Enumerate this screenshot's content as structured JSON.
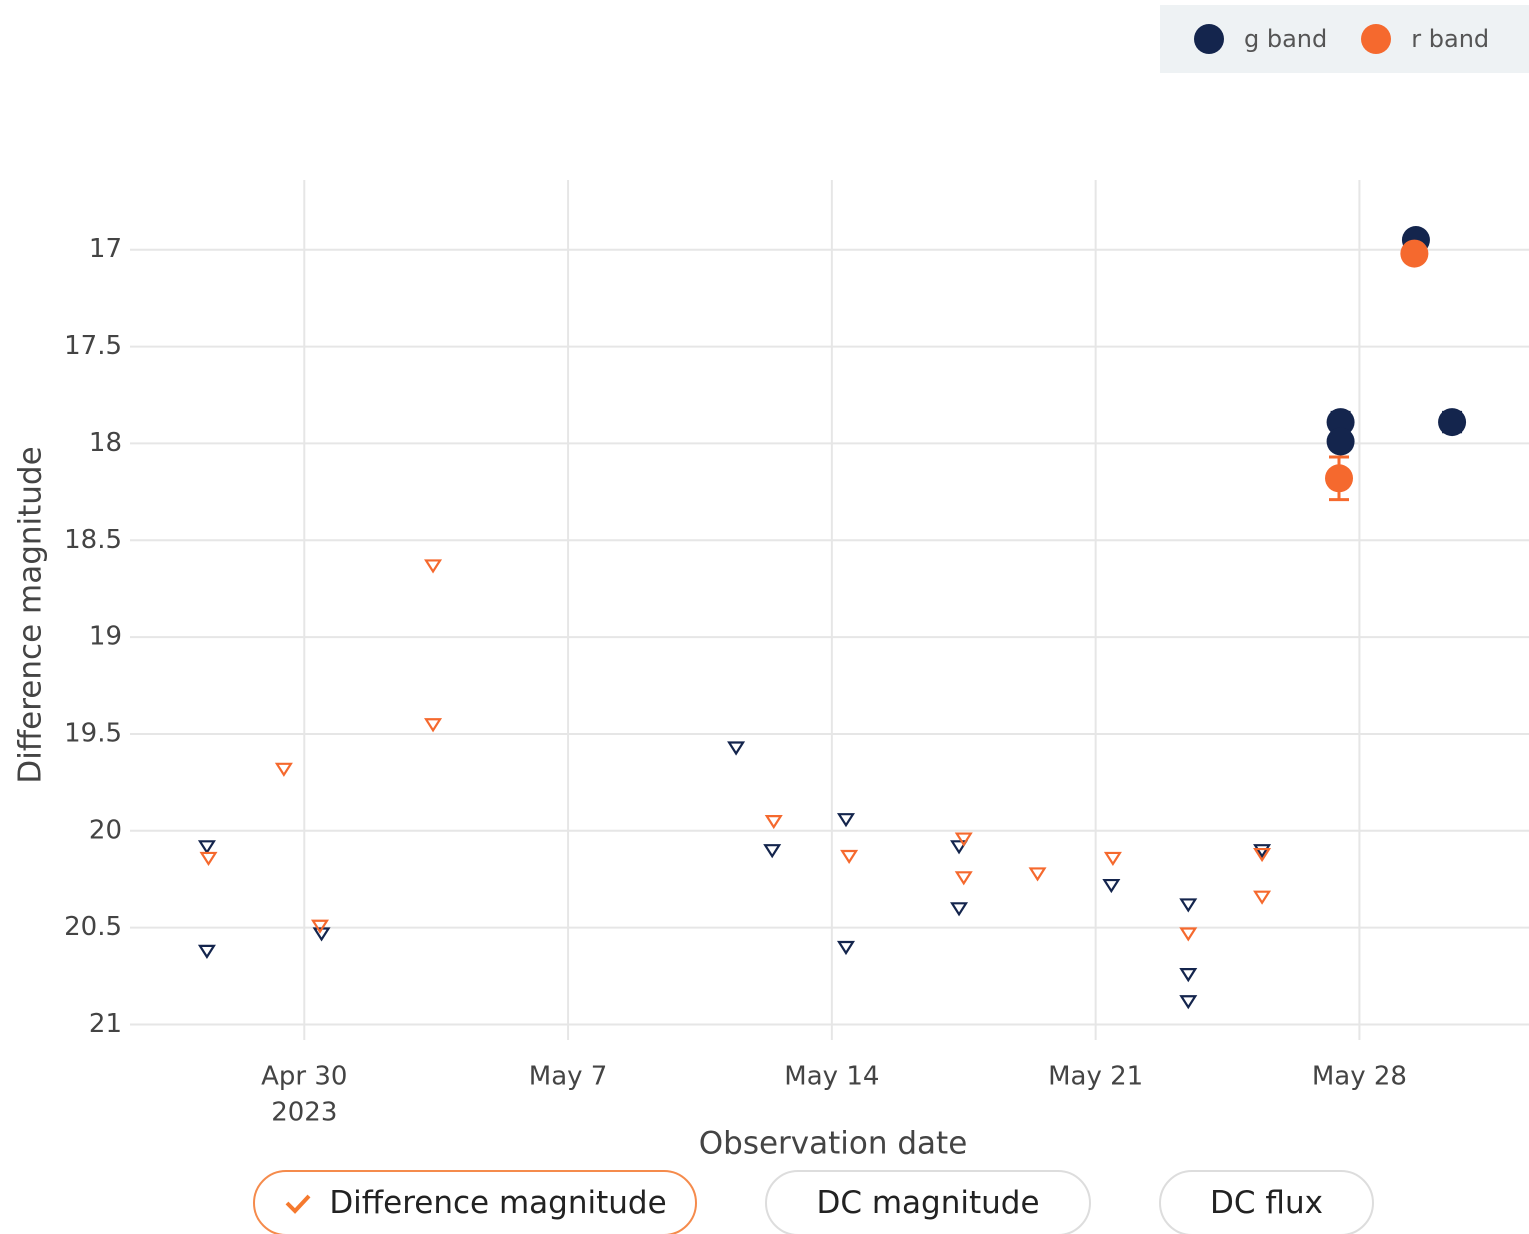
{
  "chart_data": {
    "type": "scatter",
    "xlabel": "Observation date",
    "ylabel": "Difference magnitude",
    "xlim": [
      "2023-04-25T09:00",
      "2023-06-01T12:00"
    ],
    "xticks": [
      {
        "value": "2023-04-30T00:00",
        "label": "Apr 30"
      },
      {
        "value": "2023-05-07T00:00",
        "label": "May 7"
      },
      {
        "value": "2023-05-14T00:00",
        "label": "May 14"
      },
      {
        "value": "2023-05-21T00:00",
        "label": "May 21"
      },
      {
        "value": "2023-05-28T00:00",
        "label": "May 28"
      }
    ],
    "x_year_label": "2023",
    "ylim": [
      21.08,
      16.64
    ],
    "yticks": [
      17,
      17.5,
      18,
      18.5,
      19,
      19.5,
      20,
      20.5,
      21
    ],
    "grid": true,
    "series": [
      {
        "name": "g band",
        "color": "#14254d",
        "x": [
          "2023-05-27T12:00",
          "2023-05-27T12:00",
          "2023-05-29T12:00",
          "2023-05-30T11:00"
        ],
        "values": [
          17.89,
          17.99,
          16.95,
          17.89
        ],
        "errors": [
          0.05,
          0.03,
          0.02,
          0.05
        ],
        "limits": {
          "x": [
            "2023-04-27T10:00",
            "2023-04-27T10:00",
            "2023-04-30T11:00",
            "2023-05-11T11:00",
            "2023-05-12T10:00",
            "2023-05-14T09:00",
            "2023-05-14T09:00",
            "2023-05-17T09:00",
            "2023-05-17T09:00",
            "2023-05-21T10:00",
            "2023-05-23T11:00",
            "2023-05-23T11:00",
            "2023-05-23T11:00",
            "2023-05-25T10:00"
          ],
          "values": [
            20.08,
            20.62,
            20.53,
            19.57,
            20.1,
            19.94,
            20.6,
            20.08,
            20.4,
            20.28,
            20.38,
            20.74,
            20.88,
            20.1
          ]
        }
      },
      {
        "name": "r band",
        "color": "#f5692e",
        "x": [
          "2023-05-27T11:00",
          "2023-05-29T11:00"
        ],
        "values": [
          18.18,
          17.02
        ],
        "errors": [
          0.11,
          0.02
        ],
        "limits": {
          "x": [
            "2023-04-27T11:00",
            "2023-04-29T11:00",
            "2023-04-30T10:00",
            "2023-05-03T10:00",
            "2023-05-03T10:00",
            "2023-05-12T11:00",
            "2023-05-14T11:00",
            "2023-05-17T12:00",
            "2023-05-17T12:00",
            "2023-05-19T11:00",
            "2023-05-21T11:00",
            "2023-05-23T11:00",
            "2023-05-25T10:00",
            "2023-05-25T10:00"
          ],
          "values": [
            20.14,
            19.68,
            20.49,
            18.63,
            19.45,
            19.95,
            20.13,
            20.04,
            20.24,
            20.22,
            20.14,
            20.53,
            20.12,
            20.34
          ]
        }
      }
    ]
  },
  "buttons": [
    {
      "label": "Difference magnitude",
      "selected": true
    },
    {
      "label": "DC magnitude",
      "selected": false
    },
    {
      "label": "DC flux",
      "selected": false
    }
  ]
}
